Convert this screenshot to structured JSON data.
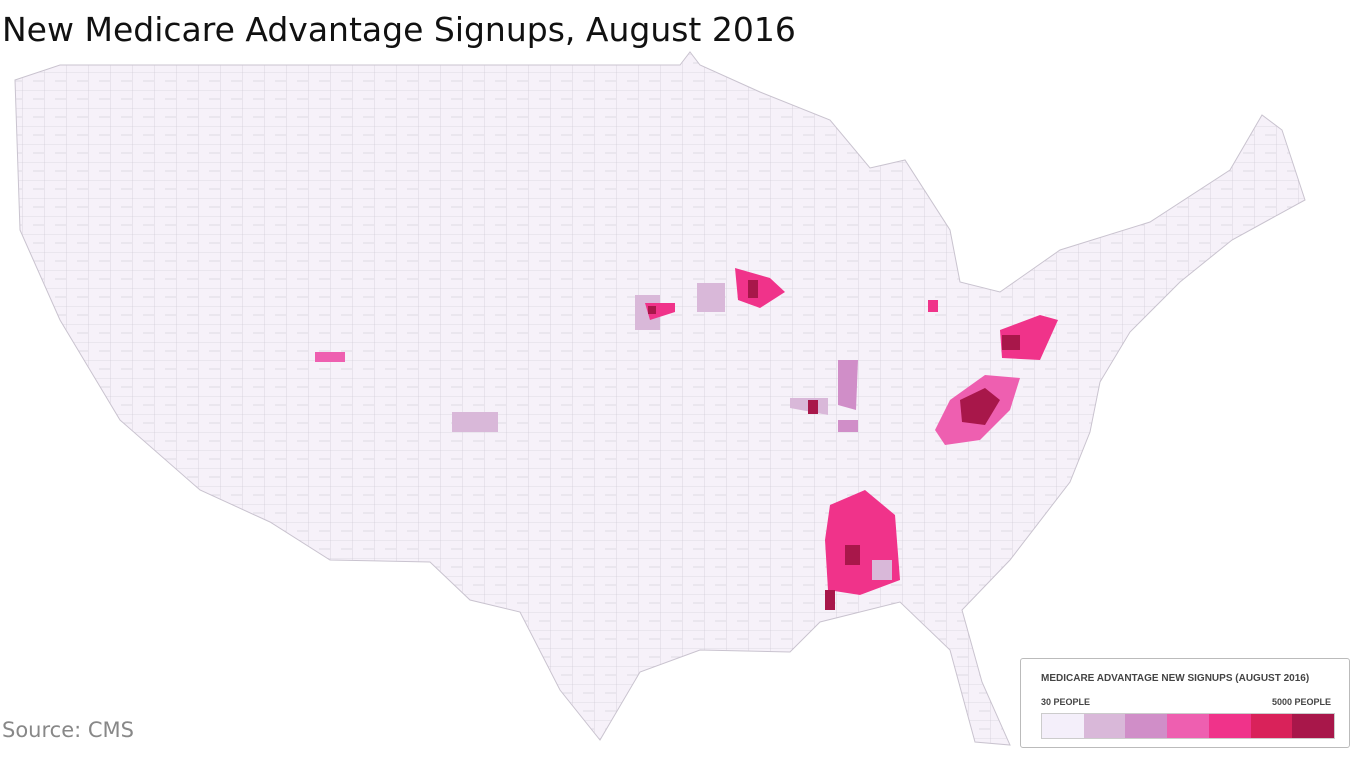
{
  "title": "New Medicare Advantage Signups, August 2016",
  "source": "Source: CMS",
  "legend": {
    "title": "MEDICARE ADVANTAGE NEW SIGNUPS (AUGUST 2016)",
    "min_label": "30 PEOPLE",
    "max_label": "5000 PEOPLE",
    "colors": [
      "#f4effa",
      "#d9b8d9",
      "#d08ec8",
      "#ee5fb0",
      "#f0338a",
      "#d9225a",
      "#a8174a"
    ]
  }
}
